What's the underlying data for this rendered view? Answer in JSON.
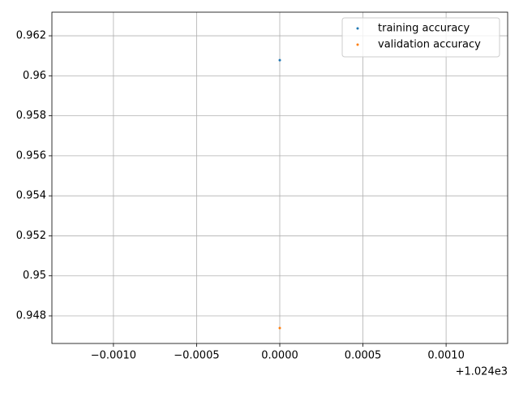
{
  "chart_data": {
    "type": "scatter",
    "series": [
      {
        "name": "training accuracy",
        "color": "#1f77b4",
        "x": [
          1024
        ],
        "values": [
          0.96078
        ]
      },
      {
        "name": "validation accuracy",
        "color": "#ff7f0e",
        "x": [
          1024
        ],
        "values": [
          0.94739
        ]
      }
    ],
    "xlim": [
      1023.99863,
      1024.00137
    ],
    "ylim": [
      0.94662,
      0.96318
    ],
    "xticks": [
      {
        "value": 1023.999,
        "label": "−0.0010"
      },
      {
        "value": 1023.9995,
        "label": "−0.0005"
      },
      {
        "value": 1024,
        "label": "0.0000"
      },
      {
        "value": 1024.0005,
        "label": "0.0005"
      },
      {
        "value": 1024.001,
        "label": "0.0010"
      }
    ],
    "x_offset_label": "+1.024e3",
    "yticks": [
      0.948,
      0.95,
      0.952,
      0.954,
      0.956,
      0.958,
      0.96,
      0.962
    ],
    "yticks_labels_fixed": null,
    "grid": true,
    "legend": "upper-right"
  }
}
